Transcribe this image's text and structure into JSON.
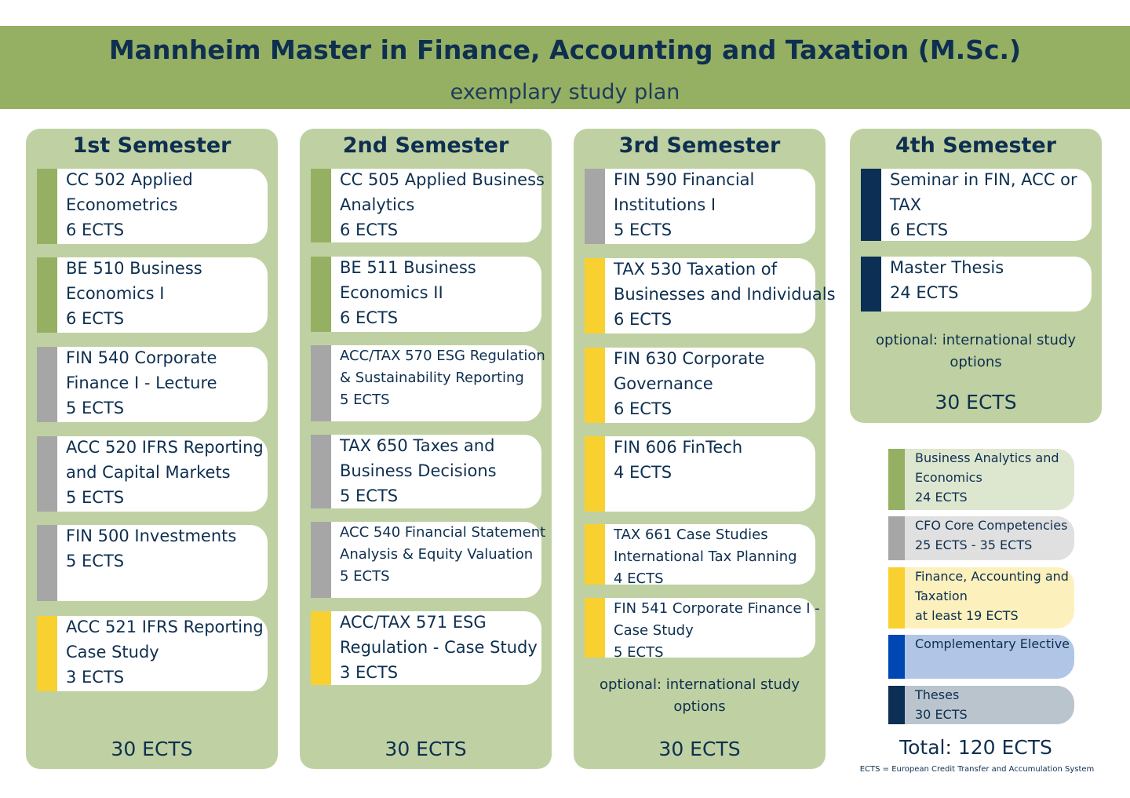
{
  "header": {
    "title": "Mannheim Master in Finance, Accounting and Taxation (M.Sc.)",
    "subtitle": "exemplary study plan"
  },
  "semesters": [
    {
      "title": "1st Semester",
      "courses": [
        {
          "lines": [
            "CC 502 Applied",
            "Econometrics",
            "6 ECTS"
          ],
          "color": "#95b063"
        },
        {
          "lines": [
            "BE 510 Business",
            "Economics I",
            "6 ECTS"
          ],
          "color": "#95b063"
        },
        {
          "lines": [
            "FIN 540 Corporate",
            "Finance I - Lecture",
            "5 ECTS"
          ],
          "color": "#a6a6a6"
        },
        {
          "lines": [
            "ACC 520 IFRS Reporting",
            "and Capital Markets",
            "5 ECTS"
          ],
          "color": "#a6a6a6"
        },
        {
          "lines": [
            "FIN 500 Investments",
            "5 ECTS"
          ],
          "color": "#a6a6a6"
        },
        {
          "lines": [
            "ACC 521 IFRS Reporting",
            "Case Study",
            "3 ECTS"
          ],
          "color": "#f8d030"
        }
      ],
      "total": "30 ECTS"
    },
    {
      "title": "2nd Semester",
      "courses": [
        {
          "lines": [
            "CC 505 Applied Business",
            "Analytics",
            "6 ECTS"
          ],
          "color": "#95b063"
        },
        {
          "lines": [
            "BE 511 Business",
            "Economics II",
            "6 ECTS"
          ],
          "color": "#95b063"
        },
        {
          "lines": [
            "ACC/TAX 570 ESG Regulation",
            "& Sustainability Reporting",
            "5 ECTS"
          ],
          "color": "#a6a6a6"
        },
        {
          "lines": [
            "TAX 650 Taxes and",
            "Business Decisions",
            "5 ECTS"
          ],
          "color": "#a6a6a6"
        },
        {
          "lines": [
            "ACC 540 Financial Statement",
            "Analysis & Equity Valuation",
            "5 ECTS"
          ],
          "color": "#a6a6a6"
        },
        {
          "lines": [
            "ACC/TAX 571 ESG",
            "Regulation - Case Study",
            "3 ECTS"
          ],
          "color": "#f8d030"
        }
      ],
      "total": "30 ECTS"
    },
    {
      "title": "3rd Semester",
      "courses": [
        {
          "lines": [
            "FIN 590 Financial",
            "Institutions I",
            "5 ECTS"
          ],
          "color": "#a6a6a6"
        },
        {
          "lines": [
            "TAX 530 Taxation of",
            "Businesses and Individuals",
            "6 ECTS"
          ],
          "color": "#f8d030"
        },
        {
          "lines": [
            "FIN 630 Corporate",
            "Governance",
            "6 ECTS"
          ],
          "color": "#f8d030"
        },
        {
          "lines": [
            "FIN 606 FinTech",
            "4 ECTS"
          ],
          "color": "#f8d030"
        },
        {
          "lines": [
            "TAX 661 Case Studies",
            "International Tax Planning",
            "4 ECTS"
          ],
          "color": "#f8d030"
        },
        {
          "lines": [
            "FIN 541 Corporate Finance I -",
            "Case Study",
            "5 ECTS"
          ],
          "color": "#f8d030"
        }
      ],
      "note": [
        "optional: international study",
        "options"
      ],
      "total": "30 ECTS"
    },
    {
      "title": "4th Semester",
      "courses": [
        {
          "lines": [
            "Seminar in FIN, ACC or",
            "TAX",
            "6 ECTS"
          ],
          "color": "#0b2f55"
        },
        {
          "lines": [
            "Master Thesis",
            "24 ECTS"
          ],
          "color": "#0b2f55"
        }
      ],
      "note": [
        "optional: international study",
        "options"
      ],
      "total": "30 ECTS"
    }
  ],
  "legend": [
    {
      "lines": [
        "Business Analytics and",
        "Economics",
        "24 ECTS"
      ],
      "color": "#95b063",
      "background": "#dde6cf"
    },
    {
      "lines": [
        "CFO Core Competencies",
        "25 ECTS - 35 ECTS"
      ],
      "color": "#a6a6a6",
      "background": "#e0e0e0"
    },
    {
      "lines": [
        "Finance, Accounting and",
        "Taxation",
        "at least 19 ECTS"
      ],
      "color": "#f8d030",
      "background": "#fcf0bc"
    },
    {
      "lines": [
        "Complementary Elective"
      ],
      "color": "#0047b3",
      "background": "#b1c6e6"
    },
    {
      "lines": [
        "Theses",
        "30 ECTS"
      ],
      "color": "#0b2f55",
      "background": "#b9c4cd"
    }
  ],
  "total": "Total: 120 ECTS",
  "footnote": "ECTS = European Credit Transfer and Accumulation System"
}
